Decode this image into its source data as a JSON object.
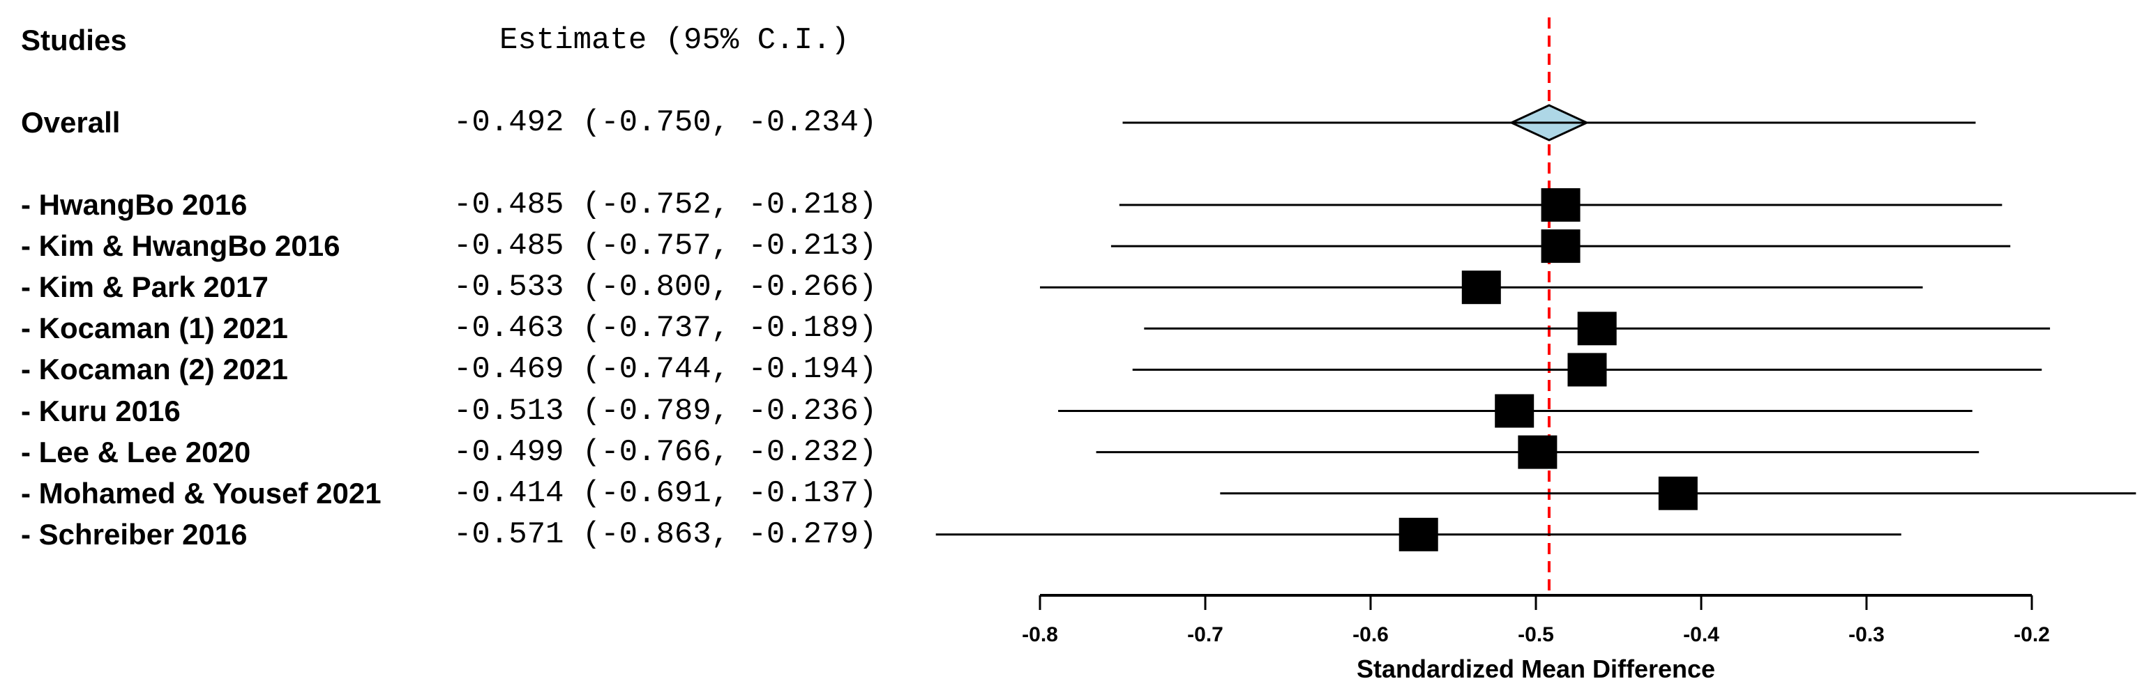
{
  "page": {
    "background": "#ffffff"
  },
  "header": {
    "studies_label": "Studies",
    "estimate_label": "Estimate (95% C.I.)"
  },
  "overall_row": {
    "label": "Overall",
    "estimate_text": "-0.492 (-0.750, -0.234)"
  },
  "colors": {
    "reference_line": "#ff0000",
    "diamond_fill": "#aed7e6",
    "diamond_border": "#000000",
    "ci_line": "#000000",
    "marker": "#000000",
    "axis": "#000000",
    "text": "#000000"
  },
  "chart_data": {
    "type": "forest",
    "title": "",
    "xlabel": "Standardized Mean Difference",
    "x_ticks": [
      -0.8,
      -0.7,
      -0.6,
      -0.5,
      -0.4,
      -0.3,
      -0.2
    ],
    "x_tick_labels": [
      "-0.8",
      "-0.7",
      "-0.6",
      "-0.5",
      "-0.4",
      "-0.3",
      "-0.2"
    ],
    "xlim": [
      -0.88,
      -0.13
    ],
    "grid": false,
    "legend": false,
    "reference_value": -0.492,
    "overall": {
      "label": "Overall",
      "estimate": -0.492,
      "lo": -0.75,
      "hi": -0.234,
      "estimate_text": "-0.492 (-0.750, -0.234)"
    },
    "studies": [
      {
        "label": "- HwangBo 2016",
        "estimate": -0.485,
        "lo": -0.752,
        "hi": -0.218,
        "estimate_text": "-0.485 (-0.752, -0.218)"
      },
      {
        "label": "- Kim & HwangBo 2016",
        "estimate": -0.485,
        "lo": -0.757,
        "hi": -0.213,
        "estimate_text": "-0.485 (-0.757, -0.213)"
      },
      {
        "label": "- Kim & Park 2017",
        "estimate": -0.533,
        "lo": -0.8,
        "hi": -0.266,
        "estimate_text": "-0.533 (-0.800, -0.266)"
      },
      {
        "label": "- Kocaman (1) 2021",
        "estimate": -0.463,
        "lo": -0.737,
        "hi": -0.189,
        "estimate_text": "-0.463 (-0.737, -0.189)"
      },
      {
        "label": "- Kocaman (2) 2021",
        "estimate": -0.469,
        "lo": -0.744,
        "hi": -0.194,
        "estimate_text": "-0.469 (-0.744, -0.194)"
      },
      {
        "label": "- Kuru 2016",
        "estimate": -0.513,
        "lo": -0.789,
        "hi": -0.236,
        "estimate_text": "-0.513 (-0.789, -0.236)"
      },
      {
        "label": "- Lee & Lee 2020",
        "estimate": -0.499,
        "lo": -0.766,
        "hi": -0.232,
        "estimate_text": "-0.499 (-0.766, -0.232)"
      },
      {
        "label": "- Mohamed & Yousef 2021",
        "estimate": -0.414,
        "lo": -0.691,
        "hi": -0.137,
        "estimate_text": "-0.414 (-0.691, -0.137)"
      },
      {
        "label": "- Schreiber 2016",
        "estimate": -0.571,
        "lo": -0.863,
        "hi": -0.279,
        "estimate_text": "-0.571 (-0.863, -0.279)"
      }
    ]
  }
}
